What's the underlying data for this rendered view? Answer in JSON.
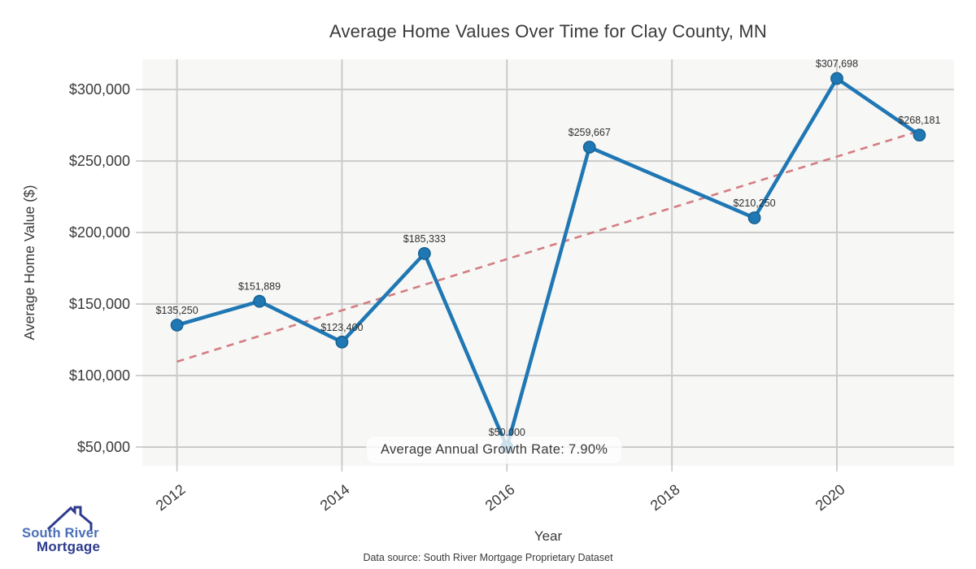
{
  "chart_data": {
    "type": "line",
    "title": "Average Home Values Over Time for Clay County, MN",
    "xlabel": "Year",
    "ylabel": "Average Home Value ($)",
    "x": [
      2012,
      2013,
      2014,
      2015,
      2016,
      2017,
      2019,
      2020,
      2021
    ],
    "values": [
      135250,
      151889,
      123400,
      185333,
      50000,
      259667,
      210250,
      307698,
      268181
    ],
    "point_labels": [
      "$135,250",
      "$151,889",
      "$123,400",
      "$185,333",
      "$50,000",
      "$259,667",
      "$210,250",
      "$307,698",
      "$268,181"
    ],
    "x_ticks": [
      2012,
      2014,
      2016,
      2018,
      2020
    ],
    "y_ticks": [
      50000,
      100000,
      150000,
      200000,
      250000,
      300000
    ],
    "y_tick_labels": [
      "$50,000",
      "$100,000",
      "$150,000",
      "$200,000",
      "$250,000",
      "$300,000"
    ],
    "xlim": [
      2011.58,
      2021.42
    ],
    "ylim": [
      36900,
      321100
    ],
    "grid": true,
    "legend": "none",
    "trend_line": {
      "style": "dashed",
      "x1": 2012,
      "y1": 109700,
      "x2": 2021,
      "y2": 271000
    },
    "annotation": "Average Annual Growth Rate: 7.90%",
    "colors": {
      "line": "#1f77b4",
      "marker": "#1f77b4",
      "marker_edge": "#15618f",
      "trend": "#d47d82",
      "grid": "#cbcbcb",
      "tick": "#c2c2c2",
      "plot_bg": "#f7f7f6",
      "text": "#3a3a3a",
      "point_label": "#2f2f2f"
    }
  },
  "footer": {
    "source": "Data source: South River Mortgage Proprietary Dataset"
  },
  "logo": {
    "line1": "South River",
    "line2": "Mortgage",
    "color1": "#4a6fb7",
    "color2": "#2f3c8e",
    "icon": "house-roof-with-chimney"
  }
}
